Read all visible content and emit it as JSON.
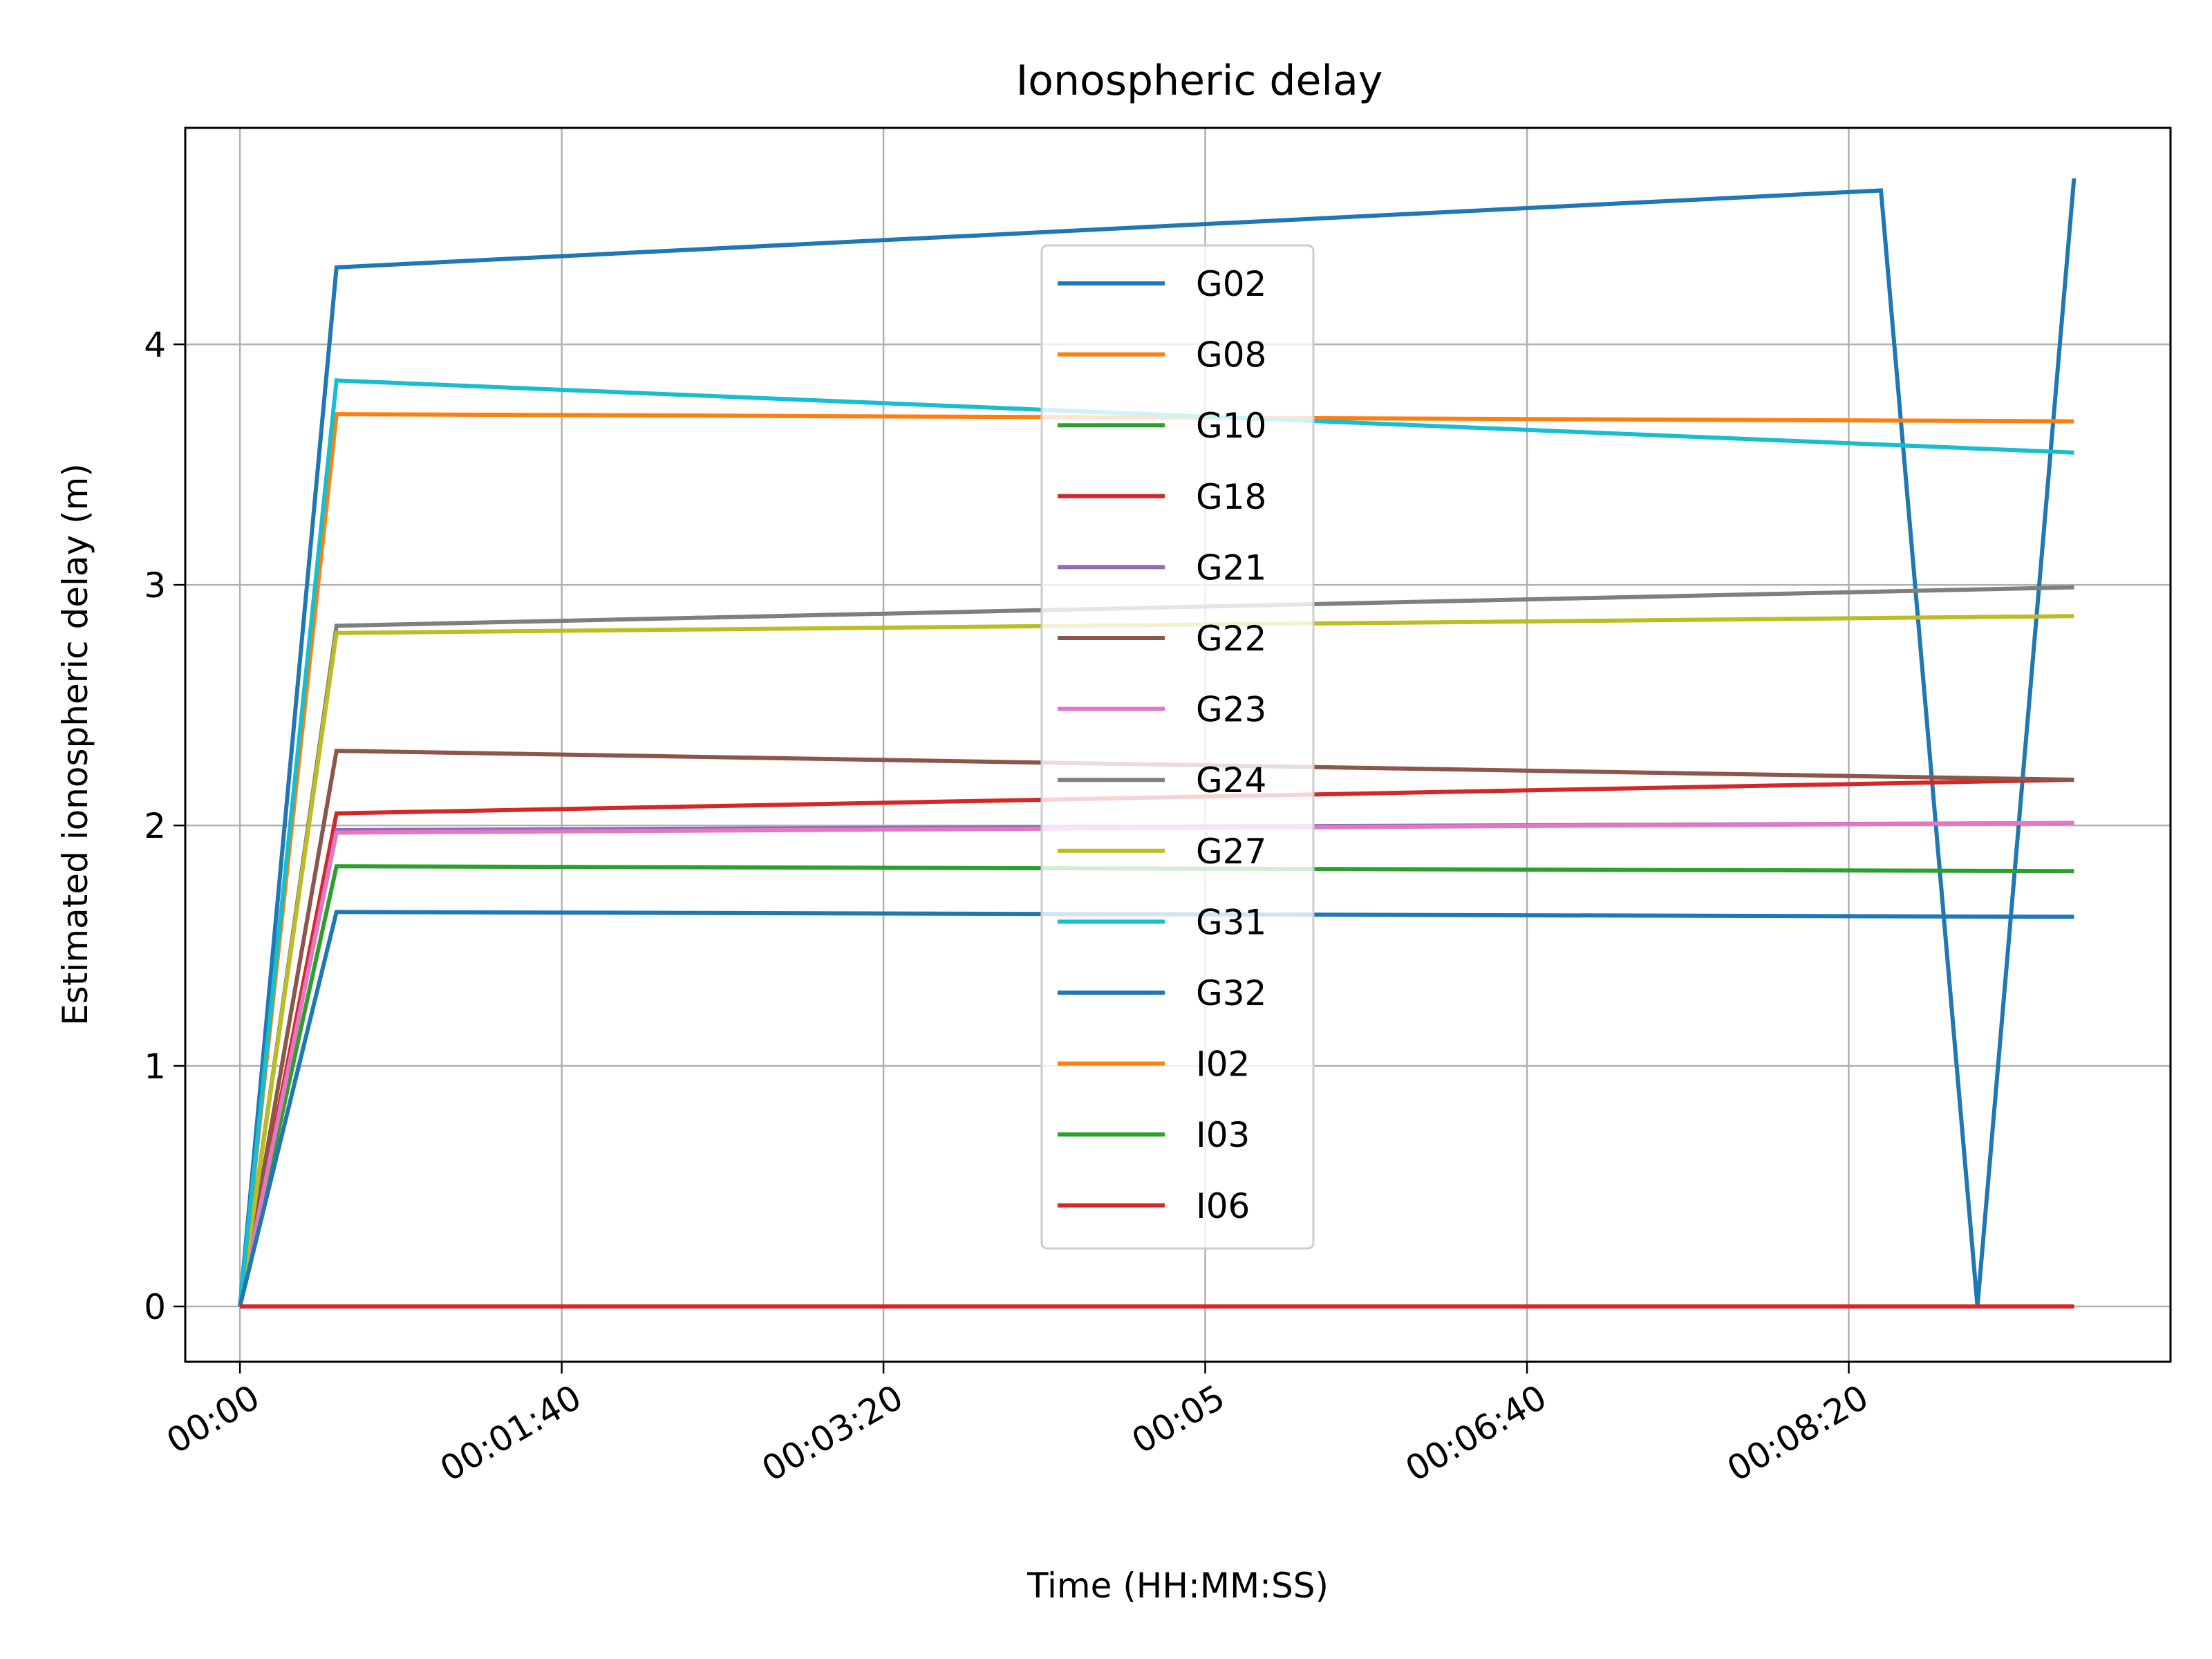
{
  "chart_data": {
    "type": "line",
    "title": "Ionospheric delay",
    "xlabel": "Time (HH:MM:SS)",
    "ylabel": "Estimated ionospheric delay (m)",
    "x_unit": "seconds",
    "xlim": [
      -17,
      600
    ],
    "ylim": [
      -0.23,
      4.9
    ],
    "xticks": [
      {
        "value": 0,
        "label": "00:00"
      },
      {
        "value": 100,
        "label": "00:01:40"
      },
      {
        "value": 200,
        "label": "00:03:20"
      },
      {
        "value": 300,
        "label": "00:05"
      },
      {
        "value": 400,
        "label": "00:06:40"
      },
      {
        "value": 500,
        "label": "00:08:20"
      }
    ],
    "yticks": [
      {
        "value": 0,
        "label": "0"
      },
      {
        "value": 1,
        "label": "1"
      },
      {
        "value": 2,
        "label": "2"
      },
      {
        "value": 3,
        "label": "3"
      },
      {
        "value": 4,
        "label": "4"
      }
    ],
    "grid": true,
    "legend_position": "upper-center",
    "series": [
      {
        "name": "G02",
        "color": "#1f77b4",
        "points": [
          [
            0,
            0
          ],
          [
            30,
            4.32
          ],
          [
            510,
            4.64
          ],
          [
            540,
            0
          ],
          [
            570,
            4.69
          ]
        ]
      },
      {
        "name": "G08",
        "color": "#ff7f0e",
        "points": [
          [
            0,
            0
          ],
          [
            30,
            3.71
          ],
          [
            570,
            3.68
          ]
        ]
      },
      {
        "name": "G10",
        "color": "#2ca02c",
        "points": [
          [
            0,
            0
          ],
          [
            30,
            1.83
          ],
          [
            570,
            1.81
          ]
        ]
      },
      {
        "name": "G18",
        "color": "#d62728",
        "points": [
          [
            0,
            0
          ],
          [
            30,
            2.05
          ],
          [
            570,
            2.19
          ]
        ]
      },
      {
        "name": "G21",
        "color": "#9467bd",
        "points": [
          [
            0,
            0
          ],
          [
            30,
            1.98
          ],
          [
            570,
            2.01
          ]
        ]
      },
      {
        "name": "G22",
        "color": "#8c564b",
        "points": [
          [
            0,
            0
          ],
          [
            30,
            2.31
          ],
          [
            570,
            2.19
          ]
        ]
      },
      {
        "name": "G23",
        "color": "#e377c2",
        "points": [
          [
            0,
            0
          ],
          [
            30,
            1.97
          ],
          [
            570,
            2.01
          ]
        ]
      },
      {
        "name": "G24",
        "color": "#7f7f7f",
        "points": [
          [
            0,
            0
          ],
          [
            30,
            2.83
          ],
          [
            570,
            2.99
          ]
        ]
      },
      {
        "name": "G27",
        "color": "#bcbd22",
        "points": [
          [
            0,
            0
          ],
          [
            30,
            2.8
          ],
          [
            570,
            2.87
          ]
        ]
      },
      {
        "name": "G31",
        "color": "#17becf",
        "points": [
          [
            0,
            0
          ],
          [
            30,
            3.85
          ],
          [
            570,
            3.55
          ]
        ]
      },
      {
        "name": "G32",
        "color": "#1f77b4",
        "points": [
          [
            0,
            0
          ],
          [
            30,
            1.64
          ],
          [
            570,
            1.62
          ]
        ]
      },
      {
        "name": "I02",
        "color": "#ff7f0e",
        "points": [
          [
            0,
            0
          ],
          [
            570,
            0
          ]
        ]
      },
      {
        "name": "I03",
        "color": "#2ca02c",
        "points": [
          [
            0,
            0
          ],
          [
            570,
            0
          ]
        ]
      },
      {
        "name": "I06",
        "color": "#d62728",
        "points": [
          [
            0,
            0
          ],
          [
            570,
            0
          ]
        ]
      }
    ]
  }
}
